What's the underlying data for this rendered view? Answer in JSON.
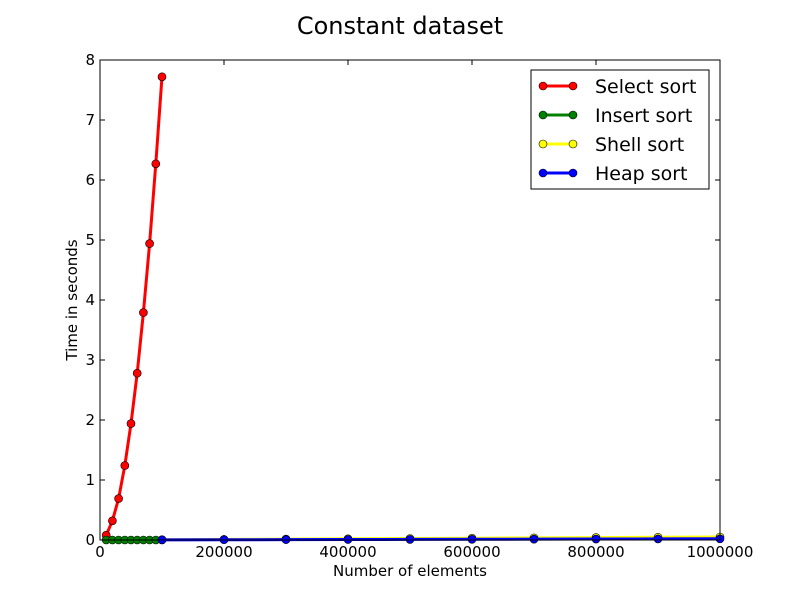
{
  "chart_data": {
    "type": "line",
    "title": "Constant dataset",
    "xlabel": "Number of elements",
    "ylabel": "Time in seconds",
    "xlim": [
      0,
      1000000
    ],
    "ylim": [
      0,
      8
    ],
    "xticks": [
      "0",
      "200000",
      "400000",
      "600000",
      "800000",
      "1000000"
    ],
    "yticks": [
      "0",
      "1",
      "2",
      "3",
      "4",
      "5",
      "6",
      "7",
      "8"
    ],
    "grid": false,
    "legend_position": "top-right",
    "series": [
      {
        "name": "Select sort",
        "color": "#ff0000",
        "x": [
          10000,
          20000,
          30000,
          40000,
          50000,
          60000,
          70000,
          80000,
          90000,
          100000
        ],
        "y": [
          0.08,
          0.32,
          0.69,
          1.24,
          1.94,
          2.78,
          3.79,
          4.94,
          6.27,
          7.72
        ]
      },
      {
        "name": "Insert sort",
        "color": "#008000",
        "x": [
          10000,
          20000,
          30000,
          40000,
          50000,
          60000,
          70000,
          80000,
          90000,
          100000
        ],
        "y": [
          0,
          0,
          0,
          0,
          0,
          0,
          0,
          0,
          0,
          0
        ]
      },
      {
        "name": "Shell sort",
        "color": "#ffff00",
        "x": [
          100000,
          200000,
          300000,
          400000,
          500000,
          600000,
          700000,
          800000,
          900000,
          1000000
        ],
        "y": [
          0.005,
          0.01,
          0.015,
          0.02,
          0.025,
          0.03,
          0.035,
          0.04,
          0.045,
          0.05
        ]
      },
      {
        "name": "Heap sort",
        "color": "#0000ff",
        "x": [
          100000,
          200000,
          300000,
          400000,
          500000,
          600000,
          700000,
          800000,
          900000,
          1000000
        ],
        "y": [
          0.002,
          0.004,
          0.006,
          0.008,
          0.01,
          0.012,
          0.014,
          0.016,
          0.018,
          0.02
        ]
      }
    ]
  }
}
